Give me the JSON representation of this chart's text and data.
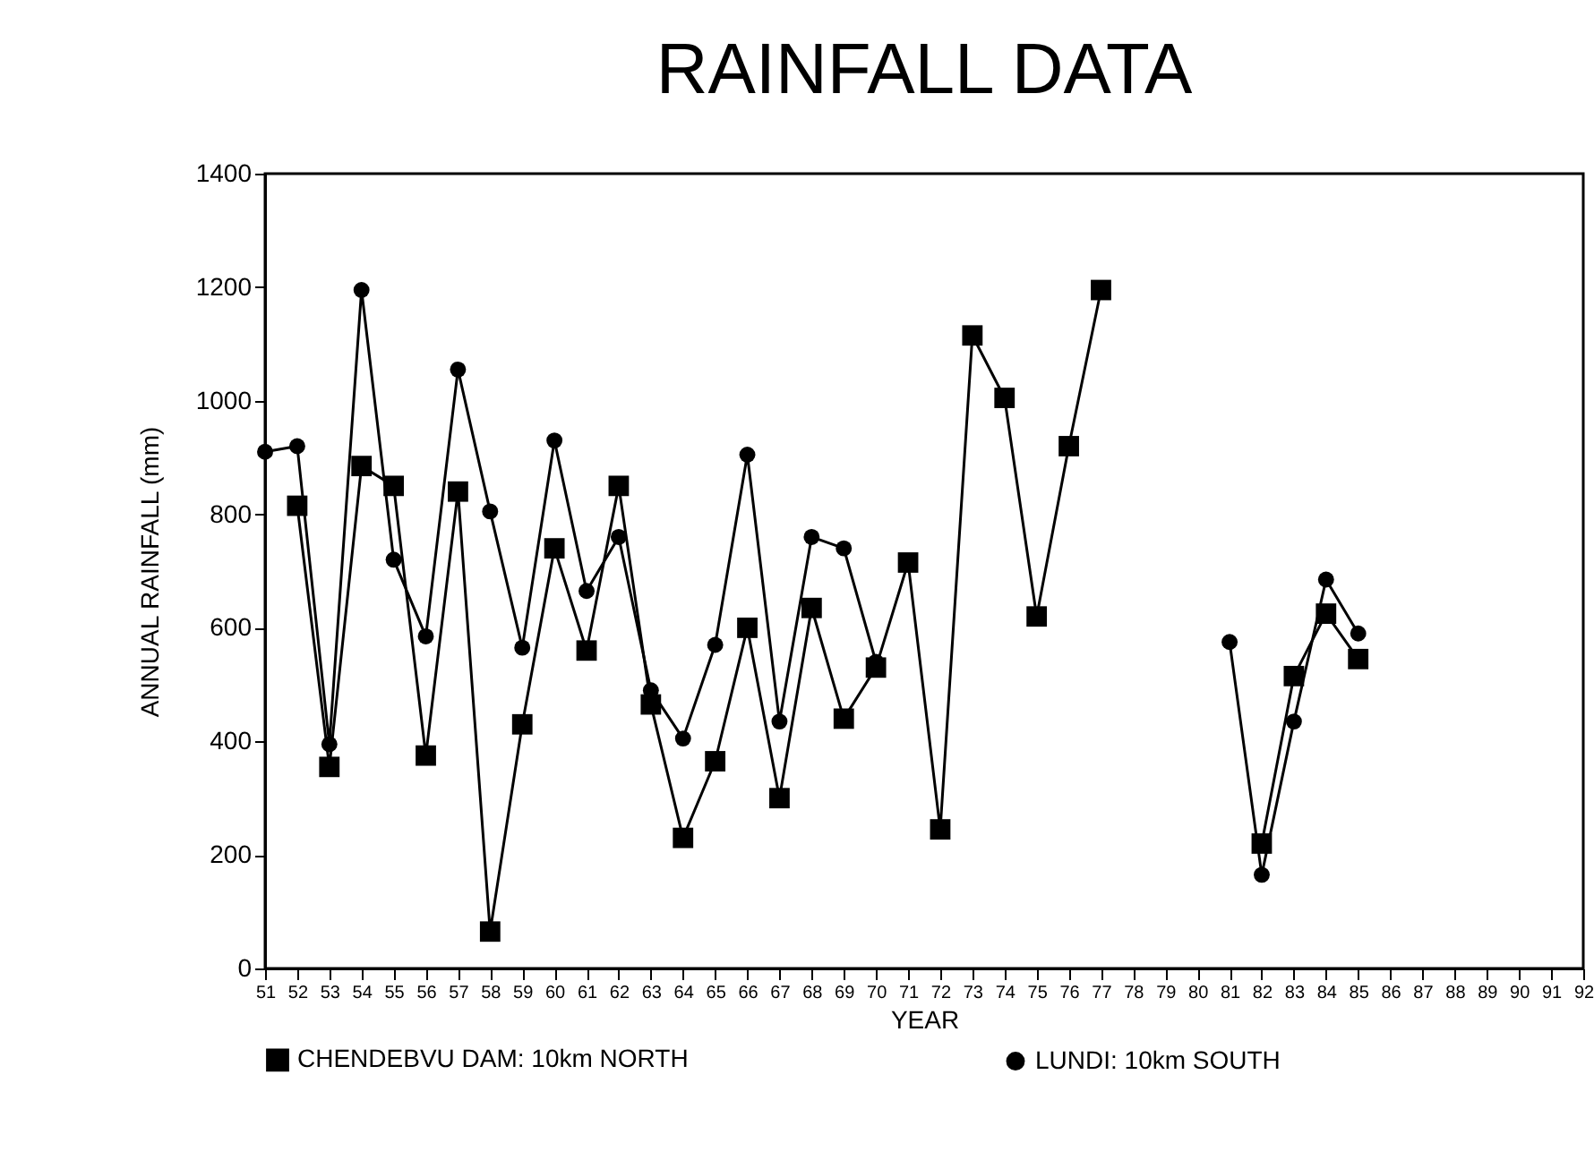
{
  "chart_data": {
    "type": "line",
    "title": "RAINFALL DATA",
    "xlabel": "YEAR",
    "ylabel": "ANNUAL RAINFALL (mm)",
    "x": [
      51,
      52,
      53,
      54,
      55,
      56,
      57,
      58,
      59,
      60,
      61,
      62,
      63,
      64,
      65,
      66,
      67,
      68,
      69,
      70,
      71,
      72,
      73,
      74,
      75,
      76,
      77,
      78,
      79,
      80,
      81,
      82,
      83,
      84,
      85
    ],
    "series": [
      {
        "name": "CHENDEBVU DAM:  10km NORTH",
        "color": "#000000",
        "marker": "square",
        "values": [
          null,
          815,
          355,
          885,
          850,
          375,
          840,
          65,
          430,
          740,
          560,
          850,
          465,
          230,
          365,
          600,
          300,
          635,
          440,
          530,
          715,
          245,
          1115,
          1005,
          620,
          920,
          1195,
          null,
          null,
          null,
          null,
          220,
          515,
          625,
          545
        ]
      },
      {
        "name": "LUNDI:  10km SOUTH",
        "color": "#000000",
        "marker": "circle",
        "values": [
          910,
          920,
          395,
          1195,
          720,
          585,
          1055,
          805,
          565,
          930,
          665,
          760,
          490,
          405,
          570,
          905,
          435,
          760,
          740,
          540,
          null,
          null,
          null,
          null,
          null,
          null,
          null,
          null,
          null,
          null,
          575,
          165,
          435,
          685,
          590
        ]
      }
    ],
    "xlim": [
      51,
      92
    ],
    "xticks": [
      51,
      52,
      53,
      54,
      55,
      56,
      57,
      58,
      59,
      60,
      61,
      62,
      63,
      64,
      65,
      66,
      67,
      68,
      69,
      70,
      71,
      72,
      73,
      74,
      75,
      76,
      77,
      78,
      79,
      80,
      81,
      82,
      83,
      84,
      85,
      86,
      87,
      88,
      89,
      90,
      91,
      92
    ],
    "ylim": [
      0,
      1400
    ],
    "yticks": [
      0,
      200,
      400,
      600,
      800,
      1000,
      1200,
      1400
    ],
    "grid": false,
    "legend": "bottom",
    "line_style": "solid"
  }
}
